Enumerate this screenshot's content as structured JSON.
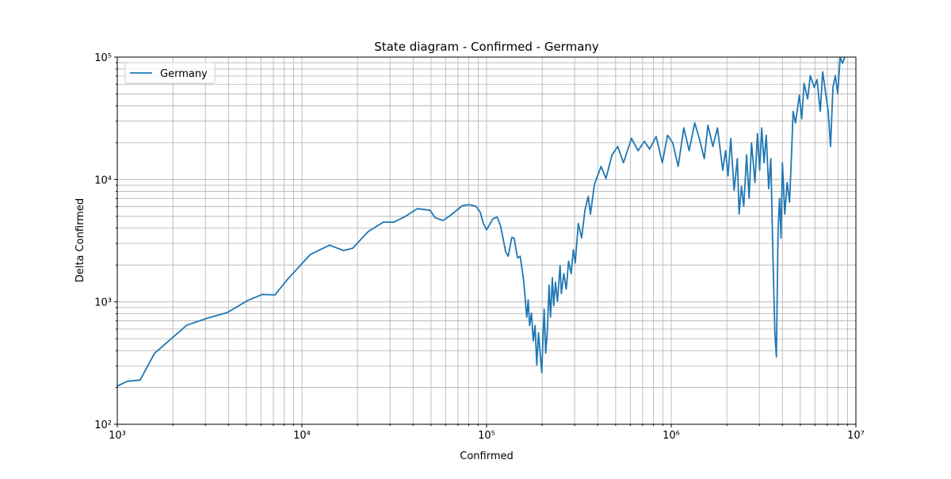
{
  "chart_data": {
    "type": "line",
    "title": "State diagram - Confirmed - Germany",
    "x_label": "Confirmed",
    "y_label": "Delta Confirmed",
    "xscale": "log",
    "yscale": "log",
    "grid": true,
    "legend": "upper left",
    "xlim": [
      1000,
      10000000
    ],
    "ylim": [
      100,
      100000
    ],
    "xticks": [
      {
        "value": 1000,
        "label": "10³"
      },
      {
        "value": 10000,
        "label": "10⁴"
      },
      {
        "value": 100000,
        "label": "10⁵"
      },
      {
        "value": 1000000,
        "label": "10⁶"
      },
      {
        "value": 10000000,
        "label": "10⁷"
      }
    ],
    "yticks": [
      {
        "value": 100,
        "label": "10²"
      },
      {
        "value": 1000,
        "label": "10³"
      },
      {
        "value": 10000,
        "label": "10⁴"
      },
      {
        "value": 100000,
        "label": "10⁵"
      }
    ],
    "xminorticks": [
      2000,
      3000,
      4000,
      5000,
      6000,
      7000,
      8000,
      9000,
      20000,
      30000,
      40000,
      50000,
      60000,
      70000,
      80000,
      90000,
      200000,
      300000,
      400000,
      500000,
      600000,
      700000,
      800000,
      900000,
      2000000,
      3000000,
      4000000,
      5000000,
      6000000,
      7000000,
      8000000,
      9000000
    ],
    "yminorticks": [
      200,
      300,
      400,
      500,
      600,
      700,
      800,
      900,
      2000,
      3000,
      4000,
      5000,
      6000,
      7000,
      8000,
      9000,
      20000,
      30000,
      40000,
      50000,
      60000,
      70000,
      80000,
      90000
    ],
    "x": [
      1000,
      1126,
      1330,
      1590,
      2380,
      3020,
      3950,
      5100,
      6100,
      7140,
      8300,
      11100,
      14100,
      16800,
      18800,
      22900,
      27600,
      31400,
      36300,
      42200,
      49500,
      52500,
      58000,
      63300,
      74000,
      81000,
      87700,
      92300,
      96000,
      100000,
      108000,
      114000,
      119000,
      127000,
      131000,
      137000,
      141000,
      147000,
      152000,
      158000,
      161000,
      165000,
      168000,
      171000,
      175000,
      179000,
      183000,
      187000,
      191000,
      195000,
      199000,
      201000,
      205000,
      209000,
      213000,
      218000,
      222000,
      227000,
      231000,
      236000,
      242000,
      250000,
      254000,
      262000,
      270000,
      278000,
      287000,
      295000,
      302000,
      314000,
      327000,
      341000,
      355000,
      365000,
      384000,
      417000,
      443000,
      478000,
      513000,
      551000,
      609000,
      661000,
      715000,
      764000,
      828000,
      895000,
      955000,
      1020000,
      1090000,
      1170000,
      1250000,
      1340000,
      1420000,
      1510000,
      1580000,
      1680000,
      1780000,
      1900000,
      1970000,
      2030000,
      2100000,
      2190000,
      2280000,
      2330000,
      2400000,
      2470000,
      2560000,
      2640000,
      2720000,
      2840000,
      2930000,
      3010000,
      3090000,
      3180000,
      3270000,
      3370000,
      3460000,
      3560000,
      3640000,
      3710000,
      3790000,
      3860000,
      3930000,
      4000000,
      4120000,
      4240000,
      4370000,
      4490000,
      4570000,
      4710000,
      4940000,
      5090000,
      5240000,
      5480000,
      5660000,
      5950000,
      6160000,
      6410000,
      6610000,
      6880000,
      7080000,
      7290000,
      7510000,
      7740000,
      7970000,
      8220000,
      8460000,
      8710000
    ],
    "series": [
      {
        "name": "Germany",
        "color": "#1f77b4",
        "values": [
          205,
          224,
          230,
          380,
          645,
          730,
          820,
          1030,
          1150,
          1140,
          1510,
          2440,
          2910,
          2630,
          2740,
          3770,
          4480,
          4480,
          4990,
          5780,
          5600,
          4890,
          4620,
          5050,
          6120,
          6220,
          6030,
          5420,
          4380,
          3880,
          4750,
          4940,
          4180,
          2550,
          2360,
          3370,
          3310,
          2290,
          2360,
          1580,
          1170,
          750,
          1040,
          640,
          810,
          480,
          640,
          306,
          560,
          380,
          264,
          412,
          870,
          382,
          555,
          1370,
          750,
          1580,
          930,
          1450,
          1010,
          1980,
          1170,
          1700,
          1270,
          2150,
          1700,
          2670,
          2080,
          4370,
          3330,
          5620,
          7290,
          5200,
          9180,
          12800,
          10200,
          15900,
          18600,
          13700,
          21700,
          17200,
          20500,
          17700,
          22500,
          13700,
          23000,
          19900,
          12800,
          26400,
          17200,
          29000,
          21600,
          14800,
          27800,
          18600,
          26400,
          11900,
          17200,
          10700,
          21600,
          8160,
          14800,
          5210,
          8800,
          6050,
          15900,
          7010,
          19900,
          9460,
          23700,
          11900,
          26400,
          13700,
          23000,
          8400,
          14800,
          2130,
          556,
          355,
          3870,
          7010,
          3330,
          13700,
          5210,
          9460,
          6520,
          17200,
          36000,
          29000,
          48800,
          31300,
          61000,
          45500,
          70500,
          56600,
          65500,
          36000,
          75900,
          48800,
          36000,
          18600,
          56600,
          70500,
          50300,
          100000,
          89000,
          100000
        ]
      }
    ]
  }
}
